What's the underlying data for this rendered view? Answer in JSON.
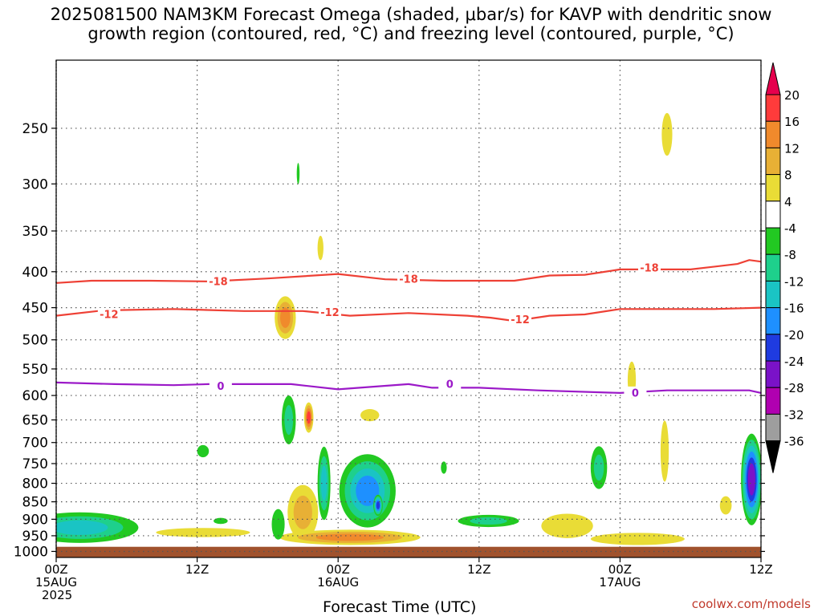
{
  "title_line1": "2025081500 NAM3KM Forecast Omega (shaded, μbar/s) for KAVP with dendritic snow",
  "title_line2": "growth region (contoured, red, °C) and freezing level (contoured, purple, °C)",
  "credit": "coolwx.com/models",
  "chart_data": {
    "type": "heatmap",
    "title": "2025081500 NAM3KM Forecast Omega (shaded, μbar/s) for KAVP with dendritic snow growth region (contoured, red, °C) and freezing level (contoured, purple, °C)",
    "xlabel": "Forecast Time (UTC)",
    "ylabel": "",
    "x_range_hours": [
      0,
      60
    ],
    "y_range_hPa": [
      1020,
      200
    ],
    "y_scale": "log",
    "grid": true,
    "x_ticks": [
      {
        "hour": 0,
        "lines": [
          "00Z",
          "15AUG",
          "2025"
        ]
      },
      {
        "hour": 12,
        "lines": [
          "12Z"
        ]
      },
      {
        "hour": 24,
        "lines": [
          "00Z",
          "16AUG"
        ]
      },
      {
        "hour": 36,
        "lines": [
          "12Z"
        ]
      },
      {
        "hour": 48,
        "lines": [
          "00Z",
          "17AUG"
        ]
      },
      {
        "hour": 60,
        "lines": [
          "12Z"
        ]
      }
    ],
    "y_ticks": [
      250,
      300,
      350,
      400,
      450,
      500,
      550,
      600,
      650,
      700,
      750,
      800,
      850,
      900,
      950,
      1000
    ],
    "ground_top_hPa": 985,
    "ground_color": "#a0522d",
    "colorbar": {
      "labels": [
        "20",
        "16",
        "12",
        "8",
        "4",
        "-4",
        "-8",
        "-12",
        "-16",
        "-20",
        "-24",
        "-28",
        "-32",
        "-36"
      ],
      "colors": [
        "#e6004d",
        "#ff3b3b",
        "#f08a2c",
        "#e8b035",
        "#e9dc36",
        "#ffffff",
        "#22c922",
        "#1ed08c",
        "#1ac4c4",
        "#1e90ff",
        "#1f3be0",
        "#7a12c8",
        "#b000b0",
        "#9e9e9e",
        "#000000"
      ]
    },
    "contours": [
      {
        "label": "-18",
        "color": "#ee4035",
        "points": [
          [
            0,
            415
          ],
          [
            3,
            412
          ],
          [
            8,
            412
          ],
          [
            13,
            413
          ],
          [
            18,
            409
          ],
          [
            24,
            403
          ],
          [
            28,
            410
          ],
          [
            33,
            412
          ],
          [
            39,
            412
          ],
          [
            42,
            405
          ],
          [
            45,
            404
          ],
          [
            48,
            397
          ],
          [
            54,
            397
          ],
          [
            58,
            390
          ],
          [
            59,
            385
          ],
          [
            60,
            387
          ]
        ],
        "labels_at": [
          [
            13.8,
            413
          ],
          [
            30,
            410
          ],
          [
            50.5,
            395
          ]
        ]
      },
      {
        "label": "-12",
        "color": "#ee4035",
        "points": [
          [
            0,
            462
          ],
          [
            4,
            454
          ],
          [
            10,
            452
          ],
          [
            16,
            455
          ],
          [
            21,
            455
          ],
          [
            25,
            462
          ],
          [
            30,
            458
          ],
          [
            35,
            462
          ],
          [
            37,
            465
          ],
          [
            39,
            470
          ],
          [
            42,
            462
          ],
          [
            45,
            460
          ],
          [
            48,
            452
          ],
          [
            52,
            452
          ],
          [
            56,
            452
          ],
          [
            60,
            450
          ]
        ],
        "labels_at": [
          [
            4.5,
            460
          ],
          [
            23.3,
            457
          ],
          [
            39.5,
            468
          ]
        ]
      },
      {
        "label": "0",
        "color": "#9b19c8",
        "points": [
          [
            0,
            575
          ],
          [
            5,
            578
          ],
          [
            10,
            580
          ],
          [
            13,
            578
          ],
          [
            20,
            578
          ],
          [
            24,
            588
          ],
          [
            30,
            578
          ],
          [
            32,
            585
          ],
          [
            36,
            585
          ],
          [
            41,
            590
          ],
          [
            48,
            595
          ],
          [
            52,
            590
          ],
          [
            56,
            590
          ],
          [
            59,
            590
          ],
          [
            60,
            595
          ]
        ],
        "labels_at": [
          [
            14,
            582
          ],
          [
            33.5,
            578
          ],
          [
            49.3,
            595
          ]
        ]
      }
    ],
    "omega_blobs": [
      {
        "t": 19.5,
        "p": 465,
        "rx": 0.9,
        "ry": 0.07,
        "levels": [
          4,
          8,
          12
        ]
      },
      {
        "t": 20.6,
        "p": 290,
        "rx": 0.12,
        "ry": 0.035,
        "levels": [
          -4
        ]
      },
      {
        "t": 22.5,
        "p": 370,
        "rx": 0.25,
        "ry": 0.04,
        "levels": [
          4
        ]
      },
      {
        "t": 19.8,
        "p": 650,
        "rx": 0.6,
        "ry": 0.08,
        "levels": [
          -4,
          -8
        ]
      },
      {
        "t": 21.5,
        "p": 645,
        "rx": 0.4,
        "ry": 0.05,
        "levels": [
          4,
          8,
          12,
          16
        ]
      },
      {
        "t": 22.8,
        "p": 800,
        "rx": 0.55,
        "ry": 0.12,
        "levels": [
          -4,
          -8,
          -12
        ]
      },
      {
        "t": 21.0,
        "p": 880,
        "rx": 1.3,
        "ry": 0.09,
        "levels": [
          4,
          8
        ]
      },
      {
        "t": 26.5,
        "p": 820,
        "rx": 2.4,
        "ry": 0.12,
        "levels": [
          -4,
          -8,
          -12,
          -16
        ]
      },
      {
        "t": 27.4,
        "p": 860,
        "rx": 0.4,
        "ry": 0.035,
        "levels": [
          -4,
          -8,
          -12,
          -16,
          -20
        ]
      },
      {
        "t": 25.0,
        "p": 955,
        "rx": 6.0,
        "ry": 0.025,
        "levels": [
          4,
          8,
          12
        ]
      },
      {
        "t": 36.8,
        "p": 905,
        "rx": 2.6,
        "ry": 0.02,
        "levels": [
          -4,
          -8
        ]
      },
      {
        "t": 2.0,
        "p": 925,
        "rx": 5.0,
        "ry": 0.05,
        "levels": [
          -4,
          -8,
          -12
        ]
      },
      {
        "t": 12.5,
        "p": 940,
        "rx": 4.0,
        "ry": 0.015,
        "levels": [
          4
        ]
      },
      {
        "t": 26.7,
        "p": 640,
        "rx": 0.8,
        "ry": 0.02,
        "levels": [
          4
        ]
      },
      {
        "t": 52.0,
        "p": 255,
        "rx": 0.45,
        "ry": 0.07,
        "levels": [
          4
        ]
      },
      {
        "t": 49.0,
        "p": 570,
        "rx": 0.35,
        "ry": 0.06,
        "levels": [
          4
        ]
      },
      {
        "t": 51.8,
        "p": 720,
        "rx": 0.35,
        "ry": 0.1,
        "levels": [
          4
        ]
      },
      {
        "t": 46.2,
        "p": 760,
        "rx": 0.7,
        "ry": 0.07,
        "levels": [
          -4,
          -8
        ]
      },
      {
        "t": 59.2,
        "p": 790,
        "rx": 0.9,
        "ry": 0.15,
        "levels": [
          -4,
          -8,
          -12,
          -16,
          -20,
          -24
        ]
      },
      {
        "t": 43.5,
        "p": 920,
        "rx": 2.2,
        "ry": 0.04,
        "levels": [
          4
        ]
      },
      {
        "t": 49.5,
        "p": 960,
        "rx": 4.0,
        "ry": 0.02,
        "levels": [
          4
        ]
      },
      {
        "t": 57.0,
        "p": 860,
        "rx": 0.5,
        "ry": 0.03,
        "levels": [
          4
        ]
      },
      {
        "t": 12.5,
        "p": 720,
        "rx": 0.5,
        "ry": 0.02,
        "levels": [
          -4
        ]
      },
      {
        "t": 33.0,
        "p": 760,
        "rx": 0.25,
        "ry": 0.02,
        "levels": [
          -4
        ]
      },
      {
        "t": 18.9,
        "p": 915,
        "rx": 0.55,
        "ry": 0.05,
        "levels": [
          -4
        ]
      },
      {
        "t": 14.0,
        "p": 905,
        "rx": 0.6,
        "ry": 0.01,
        "levels": [
          -4
        ]
      }
    ]
  }
}
